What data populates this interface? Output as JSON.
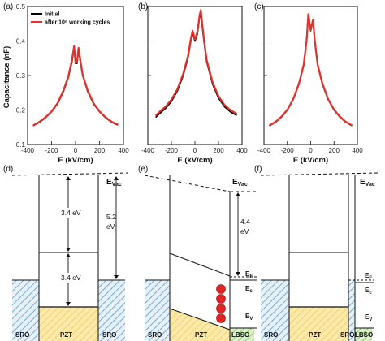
{
  "chart_data": [
    {
      "panel": "(a)",
      "type": "line",
      "ylabel": "Capacitance (nF)",
      "xlabel": "E (kV/cm)",
      "xlim": [
        -400,
        400
      ],
      "ylim": [
        0.1,
        0.5
      ],
      "xticks": [
        -400,
        -200,
        0,
        200,
        400
      ],
      "yticks": [
        0.1,
        0.2,
        0.3,
        0.4,
        0.5
      ],
      "legend_position": "top-left",
      "series": [
        {
          "name": "Initial",
          "color": "#000000",
          "x": [
            -350,
            -300,
            -250,
            -200,
            -150,
            -100,
            -60,
            -30,
            -12,
            0,
            12,
            25,
            40,
            60,
            100,
            150,
            200,
            250,
            300,
            350
          ],
          "y": [
            0.155,
            0.165,
            0.178,
            0.195,
            0.218,
            0.255,
            0.295,
            0.34,
            0.38,
            0.335,
            0.335,
            0.375,
            0.34,
            0.3,
            0.255,
            0.218,
            0.195,
            0.178,
            0.165,
            0.157
          ]
        },
        {
          "name": "after 10⁶ working cycles",
          "color": "#e8302a",
          "x": [
            -350,
            -300,
            -250,
            -200,
            -150,
            -100,
            -60,
            -30,
            -12,
            0,
            12,
            25,
            40,
            60,
            100,
            150,
            200,
            250,
            300,
            350
          ],
          "y": [
            0.156,
            0.166,
            0.179,
            0.196,
            0.22,
            0.258,
            0.298,
            0.345,
            0.385,
            0.34,
            0.34,
            0.38,
            0.345,
            0.302,
            0.258,
            0.22,
            0.196,
            0.179,
            0.166,
            0.158
          ]
        }
      ]
    },
    {
      "panel": "(b)",
      "type": "line",
      "xlabel": "E (kV/cm)",
      "xlim": [
        -400,
        400
      ],
      "ylim": [
        0.1,
        0.5
      ],
      "xticks": [
        -400,
        -200,
        0,
        200,
        400
      ],
      "yticks": [
        0.1,
        0.2,
        0.3,
        0.4,
        0.5
      ],
      "series": [
        {
          "name": "Initial",
          "color": "#000000",
          "x": [
            -330,
            -300,
            -250,
            -200,
            -150,
            -100,
            -60,
            -35,
            -20,
            0,
            20,
            40,
            50,
            60,
            80,
            100,
            150,
            200,
            250,
            300,
            350
          ],
          "y": [
            0.18,
            0.19,
            0.205,
            0.225,
            0.255,
            0.3,
            0.35,
            0.4,
            0.425,
            0.4,
            0.42,
            0.47,
            0.475,
            0.45,
            0.39,
            0.34,
            0.275,
            0.235,
            0.21,
            0.195,
            0.185
          ]
        },
        {
          "name": "after 10⁶ working cycles",
          "color": "#e8302a",
          "x": [
            -330,
            -300,
            -250,
            -200,
            -150,
            -100,
            -60,
            -35,
            -20,
            0,
            20,
            40,
            50,
            60,
            80,
            100,
            150,
            200,
            250,
            300,
            350
          ],
          "y": [
            0.185,
            0.195,
            0.21,
            0.23,
            0.26,
            0.305,
            0.355,
            0.405,
            0.43,
            0.405,
            0.425,
            0.475,
            0.49,
            0.455,
            0.395,
            0.345,
            0.28,
            0.24,
            0.215,
            0.2,
            0.19
          ]
        }
      ]
    },
    {
      "panel": "(c)",
      "type": "line",
      "xlabel": "E (kV/cm)",
      "xlim": [
        -400,
        400
      ],
      "ylim": [
        0.1,
        0.5
      ],
      "xticks": [
        -400,
        -200,
        0,
        200,
        400
      ],
      "yticks": [
        0.1,
        0.2,
        0.3,
        0.4,
        0.5
      ],
      "series": [
        {
          "name": "Initial",
          "color": "#000000",
          "x": [
            -350,
            -300,
            -250,
            -200,
            -150,
            -100,
            -60,
            -35,
            -20,
            0,
            20,
            35,
            60,
            100,
            150,
            200,
            250,
            300,
            350
          ],
          "y": [
            0.155,
            0.165,
            0.18,
            0.2,
            0.23,
            0.275,
            0.33,
            0.4,
            0.475,
            0.43,
            0.46,
            0.4,
            0.33,
            0.275,
            0.23,
            0.2,
            0.18,
            0.165,
            0.155
          ]
        },
        {
          "name": "after 10⁶ working cycles",
          "color": "#e8302a",
          "x": [
            -350,
            -300,
            -250,
            -200,
            -150,
            -100,
            -60,
            -35,
            -20,
            0,
            20,
            35,
            60,
            100,
            150,
            200,
            250,
            300,
            350
          ],
          "y": [
            0.156,
            0.166,
            0.181,
            0.201,
            0.231,
            0.277,
            0.332,
            0.402,
            0.478,
            0.432,
            0.462,
            0.402,
            0.332,
            0.277,
            0.231,
            0.201,
            0.181,
            0.166,
            0.156
          ]
        }
      ]
    }
  ],
  "bands": {
    "panel_d": {
      "label": "(d)",
      "vac": "E",
      "vac_sub": "Vac",
      "gap_pzt": "3.4 eV",
      "gap_lower": "3.4 eV",
      "workfn": "5.2",
      "workfn_unit": "eV",
      "layers": [
        "SRO",
        "PZT",
        "SRO"
      ]
    },
    "panel_e": {
      "label": "(e)",
      "vac": "E",
      "vac_sub": "Vac",
      "offset": "4.4",
      "offset_unit": "eV",
      "ef": "E",
      "ef_sub": "F",
      "ec": "E",
      "ec_sub": "c",
      "ev": "E",
      "ev_sub": "V",
      "layers": [
        "SRO",
        "PZT",
        "LBSO"
      ]
    },
    "panel_f": {
      "label": "(f)",
      "vac": "E",
      "vac_sub": "Vac",
      "ef": "E",
      "ef_sub": "F",
      "ec": "E",
      "ec_sub": "c",
      "ev": "E",
      "ev_sub": "V",
      "layers": [
        "SRO",
        "PZT",
        "SRO",
        "LBSO"
      ]
    }
  }
}
